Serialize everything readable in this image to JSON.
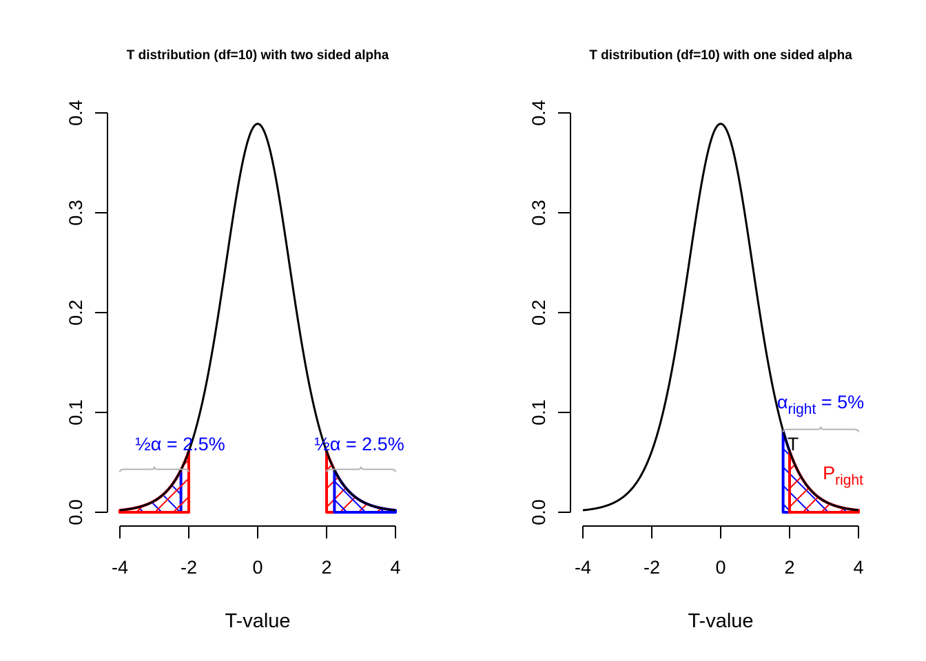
{
  "colors": {
    "tail_blue": "#0000ff",
    "tail_red": "#ff0000",
    "brace": "#b3b3b3",
    "curve": "#000000"
  },
  "chart_data": [
    {
      "type": "line",
      "title": "T distribution (df=10) with two sided alpha",
      "xlabel": "T-value",
      "ylabel": "",
      "df": 10,
      "xlim": [
        -4,
        4
      ],
      "ylim": [
        0,
        0.4
      ],
      "xticks": [
        "-4",
        "-2",
        "0",
        "2",
        "4"
      ],
      "yticks": [
        "0.0",
        "0.1",
        "0.2",
        "0.3",
        "0.4"
      ],
      "grid": false,
      "regions": [
        {
          "color": "blue",
          "from": -4,
          "to": -2.228
        },
        {
          "color": "red",
          "from": -4,
          "to": -2.0
        },
        {
          "color": "red",
          "from": 2.0,
          "to": 4
        },
        {
          "color": "blue",
          "from": 2.228,
          "to": 4
        }
      ],
      "annotations": [
        {
          "text": "½α = 2.5%",
          "color": "blue",
          "x": -2.25,
          "y": 0.062,
          "brace_from": -4,
          "brace_to": -2.0,
          "brace_y": 0.043
        },
        {
          "text": "½α = 2.5%",
          "color": "blue",
          "x": 2.95,
          "y": 0.062,
          "brace_from": 2.0,
          "brace_to": 4,
          "brace_y": 0.043
        }
      ]
    },
    {
      "type": "line",
      "title": "T distribution (df=10) with one sided alpha",
      "xlabel": "T-value",
      "ylabel": "",
      "df": 10,
      "xlim": [
        -4,
        4
      ],
      "ylim": [
        0,
        0.4
      ],
      "xticks": [
        "-4",
        "-2",
        "0",
        "2",
        "4"
      ],
      "yticks": [
        "0.0",
        "0.1",
        "0.2",
        "0.3",
        "0.4"
      ],
      "grid": false,
      "regions": [
        {
          "color": "blue",
          "from": 1.812,
          "to": 4
        },
        {
          "color": "red",
          "from": 2.0,
          "to": 4
        }
      ],
      "annotations": [
        {
          "text": "α",
          "sub": "right",
          "suffix": " = 5%",
          "color": "blue",
          "x": 2.9,
          "y": 0.104,
          "brace_from": 1.812,
          "brace_to": 4,
          "brace_y": 0.083
        },
        {
          "text": "T",
          "color": "black",
          "x": 2.1,
          "y": 0.062
        },
        {
          "text": "P",
          "sub": "right",
          "color": "red",
          "x": 3.55,
          "y": 0.033
        }
      ]
    }
  ]
}
